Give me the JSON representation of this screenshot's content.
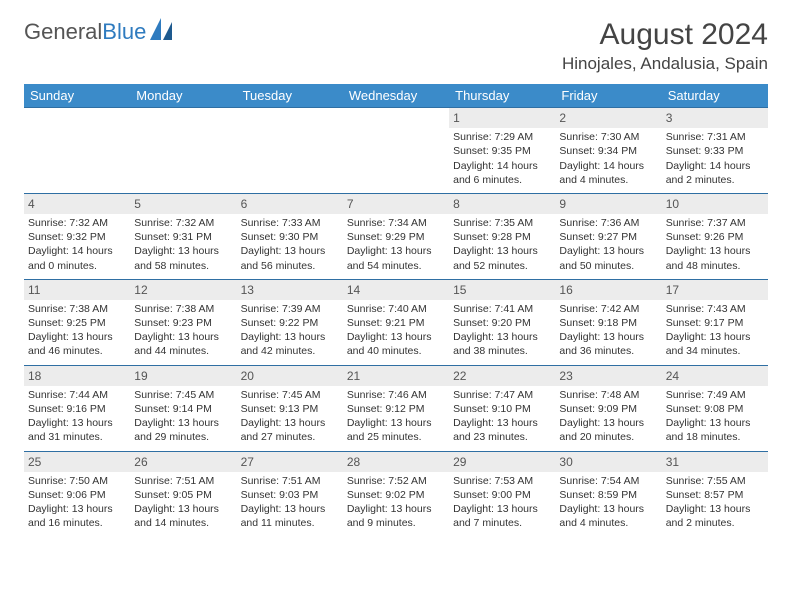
{
  "brand": {
    "part1": "General",
    "part2": "Blue"
  },
  "title": "August 2024",
  "location": "Hinojales, Andalusia, Spain",
  "colors": {
    "header_bg": "#3b8bc9",
    "header_text": "#ffffff",
    "daynum_bg": "#ececec",
    "rule": "#2f6fa3",
    "brand_blue": "#2f7bbf",
    "text": "#333333",
    "page_bg": "#ffffff"
  },
  "typography": {
    "title_fontsize": 30,
    "location_fontsize": 17,
    "dayhead_fontsize": 13,
    "cell_fontsize": 10.5,
    "daynum_fontsize": 12
  },
  "day_names": [
    "Sunday",
    "Monday",
    "Tuesday",
    "Wednesday",
    "Thursday",
    "Friday",
    "Saturday"
  ],
  "weeks": [
    [
      null,
      null,
      null,
      null,
      {
        "n": "1",
        "sunrise": "7:29 AM",
        "sunset": "9:35 PM",
        "daylight": "14 hours and 6 minutes."
      },
      {
        "n": "2",
        "sunrise": "7:30 AM",
        "sunset": "9:34 PM",
        "daylight": "14 hours and 4 minutes."
      },
      {
        "n": "3",
        "sunrise": "7:31 AM",
        "sunset": "9:33 PM",
        "daylight": "14 hours and 2 minutes."
      }
    ],
    [
      {
        "n": "4",
        "sunrise": "7:32 AM",
        "sunset": "9:32 PM",
        "daylight": "14 hours and 0 minutes."
      },
      {
        "n": "5",
        "sunrise": "7:32 AM",
        "sunset": "9:31 PM",
        "daylight": "13 hours and 58 minutes."
      },
      {
        "n": "6",
        "sunrise": "7:33 AM",
        "sunset": "9:30 PM",
        "daylight": "13 hours and 56 minutes."
      },
      {
        "n": "7",
        "sunrise": "7:34 AM",
        "sunset": "9:29 PM",
        "daylight": "13 hours and 54 minutes."
      },
      {
        "n": "8",
        "sunrise": "7:35 AM",
        "sunset": "9:28 PM",
        "daylight": "13 hours and 52 minutes."
      },
      {
        "n": "9",
        "sunrise": "7:36 AM",
        "sunset": "9:27 PM",
        "daylight": "13 hours and 50 minutes."
      },
      {
        "n": "10",
        "sunrise": "7:37 AM",
        "sunset": "9:26 PM",
        "daylight": "13 hours and 48 minutes."
      }
    ],
    [
      {
        "n": "11",
        "sunrise": "7:38 AM",
        "sunset": "9:25 PM",
        "daylight": "13 hours and 46 minutes."
      },
      {
        "n": "12",
        "sunrise": "7:38 AM",
        "sunset": "9:23 PM",
        "daylight": "13 hours and 44 minutes."
      },
      {
        "n": "13",
        "sunrise": "7:39 AM",
        "sunset": "9:22 PM",
        "daylight": "13 hours and 42 minutes."
      },
      {
        "n": "14",
        "sunrise": "7:40 AM",
        "sunset": "9:21 PM",
        "daylight": "13 hours and 40 minutes."
      },
      {
        "n": "15",
        "sunrise": "7:41 AM",
        "sunset": "9:20 PM",
        "daylight": "13 hours and 38 minutes."
      },
      {
        "n": "16",
        "sunrise": "7:42 AM",
        "sunset": "9:18 PM",
        "daylight": "13 hours and 36 minutes."
      },
      {
        "n": "17",
        "sunrise": "7:43 AM",
        "sunset": "9:17 PM",
        "daylight": "13 hours and 34 minutes."
      }
    ],
    [
      {
        "n": "18",
        "sunrise": "7:44 AM",
        "sunset": "9:16 PM",
        "daylight": "13 hours and 31 minutes."
      },
      {
        "n": "19",
        "sunrise": "7:45 AM",
        "sunset": "9:14 PM",
        "daylight": "13 hours and 29 minutes."
      },
      {
        "n": "20",
        "sunrise": "7:45 AM",
        "sunset": "9:13 PM",
        "daylight": "13 hours and 27 minutes."
      },
      {
        "n": "21",
        "sunrise": "7:46 AM",
        "sunset": "9:12 PM",
        "daylight": "13 hours and 25 minutes."
      },
      {
        "n": "22",
        "sunrise": "7:47 AM",
        "sunset": "9:10 PM",
        "daylight": "13 hours and 23 minutes."
      },
      {
        "n": "23",
        "sunrise": "7:48 AM",
        "sunset": "9:09 PM",
        "daylight": "13 hours and 20 minutes."
      },
      {
        "n": "24",
        "sunrise": "7:49 AM",
        "sunset": "9:08 PM",
        "daylight": "13 hours and 18 minutes."
      }
    ],
    [
      {
        "n": "25",
        "sunrise": "7:50 AM",
        "sunset": "9:06 PM",
        "daylight": "13 hours and 16 minutes."
      },
      {
        "n": "26",
        "sunrise": "7:51 AM",
        "sunset": "9:05 PM",
        "daylight": "13 hours and 14 minutes."
      },
      {
        "n": "27",
        "sunrise": "7:51 AM",
        "sunset": "9:03 PM",
        "daylight": "13 hours and 11 minutes."
      },
      {
        "n": "28",
        "sunrise": "7:52 AM",
        "sunset": "9:02 PM",
        "daylight": "13 hours and 9 minutes."
      },
      {
        "n": "29",
        "sunrise": "7:53 AM",
        "sunset": "9:00 PM",
        "daylight": "13 hours and 7 minutes."
      },
      {
        "n": "30",
        "sunrise": "7:54 AM",
        "sunset": "8:59 PM",
        "daylight": "13 hours and 4 minutes."
      },
      {
        "n": "31",
        "sunrise": "7:55 AM",
        "sunset": "8:57 PM",
        "daylight": "13 hours and 2 minutes."
      }
    ]
  ],
  "labels": {
    "sunrise": "Sunrise: ",
    "sunset": "Sunset: ",
    "daylight": "Daylight: "
  }
}
